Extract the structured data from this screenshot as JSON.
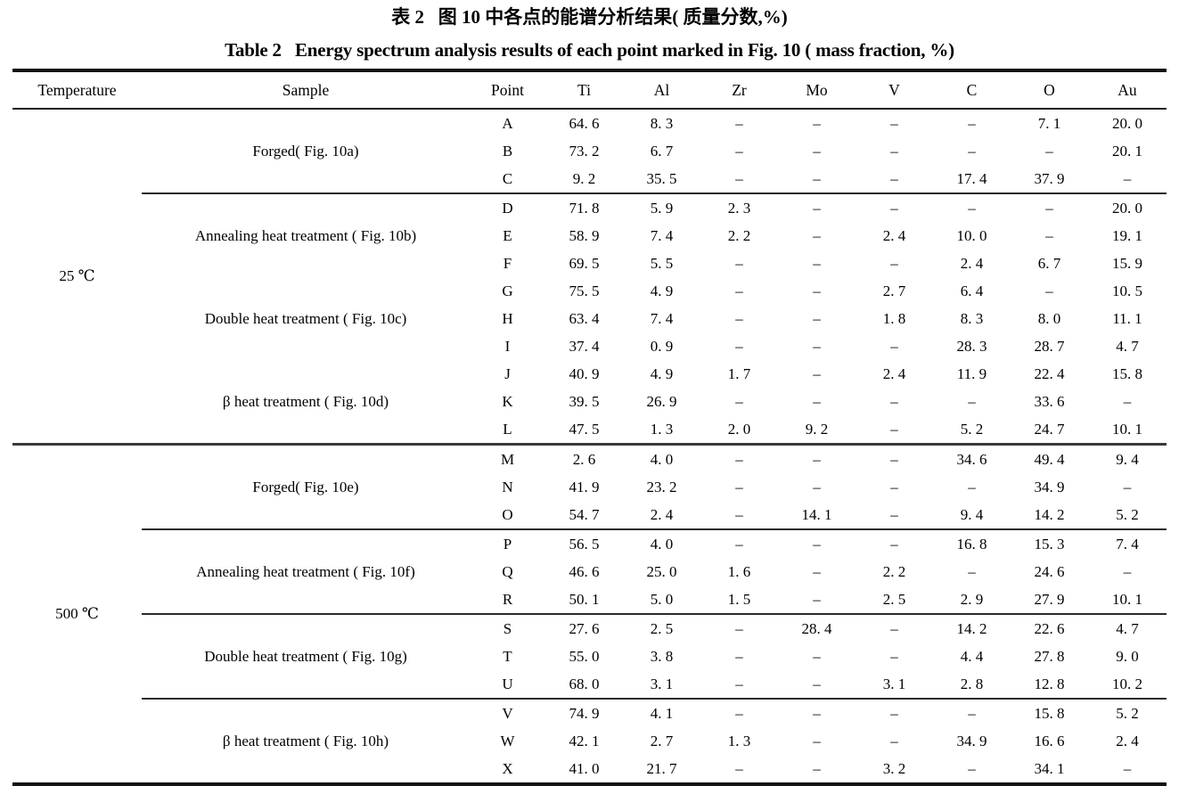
{
  "title": {
    "zh": "表 2   图 10 中各点的能谱分析结果( 质量分数,%)",
    "en": "Table 2   Energy spectrum analysis results of each point marked in Fig. 10 ( mass fraction, %)"
  },
  "table": {
    "columns": [
      "Temperature",
      "Sample",
      "Point",
      "Ti",
      "Al",
      "Zr",
      "Mo",
      "V",
      "C",
      "O",
      "Au"
    ],
    "groups": [
      {
        "temperature": "25 ℃",
        "samples": [
          {
            "label": "Forged( Fig. 10a)",
            "divider": false,
            "rows": [
              {
                "point": "A",
                "values": [
                  "64. 6",
                  "8. 3",
                  "–",
                  "–",
                  "–",
                  "–",
                  "7. 1",
                  "20. 0"
                ]
              },
              {
                "point": "B",
                "values": [
                  "73. 2",
                  "6. 7",
                  "–",
                  "–",
                  "–",
                  "–",
                  "–",
                  "20. 1"
                ]
              },
              {
                "point": "C",
                "values": [
                  "9. 2",
                  "35. 5",
                  "–",
                  "–",
                  "–",
                  "17. 4",
                  "37. 9",
                  "–"
                ]
              }
            ]
          },
          {
            "label": "Annealing heat treatment ( Fig. 10b)",
            "divider": true,
            "rows": [
              {
                "point": "D",
                "values": [
                  "71. 8",
                  "5. 9",
                  "2. 3",
                  "–",
                  "–",
                  "–",
                  "–",
                  "20. 0"
                ]
              },
              {
                "point": "E",
                "values": [
                  "58. 9",
                  "7. 4",
                  "2. 2",
                  "–",
                  "2. 4",
                  "10. 0",
                  "–",
                  "19. 1"
                ]
              },
              {
                "point": "F",
                "values": [
                  "69. 5",
                  "5. 5",
                  "–",
                  "–",
                  "–",
                  "2. 4",
                  "6. 7",
                  "15. 9"
                ]
              }
            ]
          },
          {
            "label": "Double heat treatment ( Fig. 10c)",
            "divider": false,
            "rows": [
              {
                "point": "G",
                "values": [
                  "75. 5",
                  "4. 9",
                  "–",
                  "–",
                  "2. 7",
                  "6. 4",
                  "–",
                  "10. 5"
                ]
              },
              {
                "point": "H",
                "values": [
                  "63. 4",
                  "7. 4",
                  "–",
                  "–",
                  "1. 8",
                  "8. 3",
                  "8. 0",
                  "11. 1"
                ]
              },
              {
                "point": "I",
                "values": [
                  "37. 4",
                  "0. 9",
                  "–",
                  "–",
                  "–",
                  "28. 3",
                  "28. 7",
                  "4. 7"
                ]
              }
            ]
          },
          {
            "label": "β heat treatment ( Fig. 10d)",
            "divider": false,
            "rows": [
              {
                "point": "J",
                "values": [
                  "40. 9",
                  "4. 9",
                  "1. 7",
                  "–",
                  "2. 4",
                  "11. 9",
                  "22. 4",
                  "15. 8"
                ]
              },
              {
                "point": "K",
                "values": [
                  "39. 5",
                  "26. 9",
                  "–",
                  "–",
                  "–",
                  "–",
                  "33. 6",
                  "–"
                ]
              },
              {
                "point": "L",
                "values": [
                  "47. 5",
                  "1. 3",
                  "2. 0",
                  "9. 2",
                  "–",
                  "5. 2",
                  "24. 7",
                  "10. 1"
                ]
              }
            ]
          }
        ]
      },
      {
        "temperature": "500 ℃",
        "samples": [
          {
            "label": "Forged( Fig. 10e)",
            "divider": false,
            "rows": [
              {
                "point": "M",
                "values": [
                  "2. 6",
                  "4. 0",
                  "–",
                  "–",
                  "–",
                  "34. 6",
                  "49. 4",
                  "9. 4"
                ]
              },
              {
                "point": "N",
                "values": [
                  "41. 9",
                  "23. 2",
                  "–",
                  "–",
                  "–",
                  "–",
                  "34. 9",
                  "–"
                ]
              },
              {
                "point": "O",
                "values": [
                  "54. 7",
                  "2. 4",
                  "–",
                  "14. 1",
                  "–",
                  "9. 4",
                  "14. 2",
                  "5. 2"
                ]
              }
            ]
          },
          {
            "label": "Annealing heat treatment ( Fig. 10f)",
            "divider": true,
            "rows": [
              {
                "point": "P",
                "values": [
                  "56. 5",
                  "4. 0",
                  "–",
                  "–",
                  "–",
                  "16. 8",
                  "15. 3",
                  "7. 4"
                ]
              },
              {
                "point": "Q",
                "values": [
                  "46. 6",
                  "25. 0",
                  "1. 6",
                  "–",
                  "2. 2",
                  "–",
                  "24. 6",
                  "–"
                ]
              },
              {
                "point": "R",
                "values": [
                  "50. 1",
                  "5. 0",
                  "1. 5",
                  "–",
                  "2. 5",
                  "2. 9",
                  "27. 9",
                  "10. 1"
                ]
              }
            ]
          },
          {
            "label": "Double heat treatment ( Fig. 10g)",
            "divider": true,
            "rows": [
              {
                "point": "S",
                "values": [
                  "27. 6",
                  "2. 5",
                  "–",
                  "28. 4",
                  "–",
                  "14. 2",
                  "22. 6",
                  "4. 7"
                ]
              },
              {
                "point": "T",
                "values": [
                  "55. 0",
                  "3. 8",
                  "–",
                  "–",
                  "–",
                  "4. 4",
                  "27. 8",
                  "9. 0"
                ]
              },
              {
                "point": "U",
                "values": [
                  "68. 0",
                  "3. 1",
                  "–",
                  "–",
                  "3. 1",
                  "2. 8",
                  "12. 8",
                  "10. 2"
                ]
              }
            ]
          },
          {
            "label": "β heat treatment ( Fig. 10h)",
            "divider": true,
            "rows": [
              {
                "point": "V",
                "values": [
                  "74. 9",
                  "4. 1",
                  "–",
                  "–",
                  "–",
                  "–",
                  "15. 8",
                  "5. 2"
                ]
              },
              {
                "point": "W",
                "values": [
                  "42. 1",
                  "2. 7",
                  "1. 3",
                  "–",
                  "–",
                  "34. 9",
                  "16. 6",
                  "2. 4"
                ]
              },
              {
                "point": "X",
                "values": [
                  "41. 0",
                  "21. 7",
                  "–",
                  "–",
                  "3. 2",
                  "–",
                  "34. 1",
                  "–"
                ]
              }
            ]
          }
        ]
      }
    ]
  },
  "colors": {
    "background": "#ffffff",
    "text": "#000000",
    "rule": "#1c1c1c"
  }
}
